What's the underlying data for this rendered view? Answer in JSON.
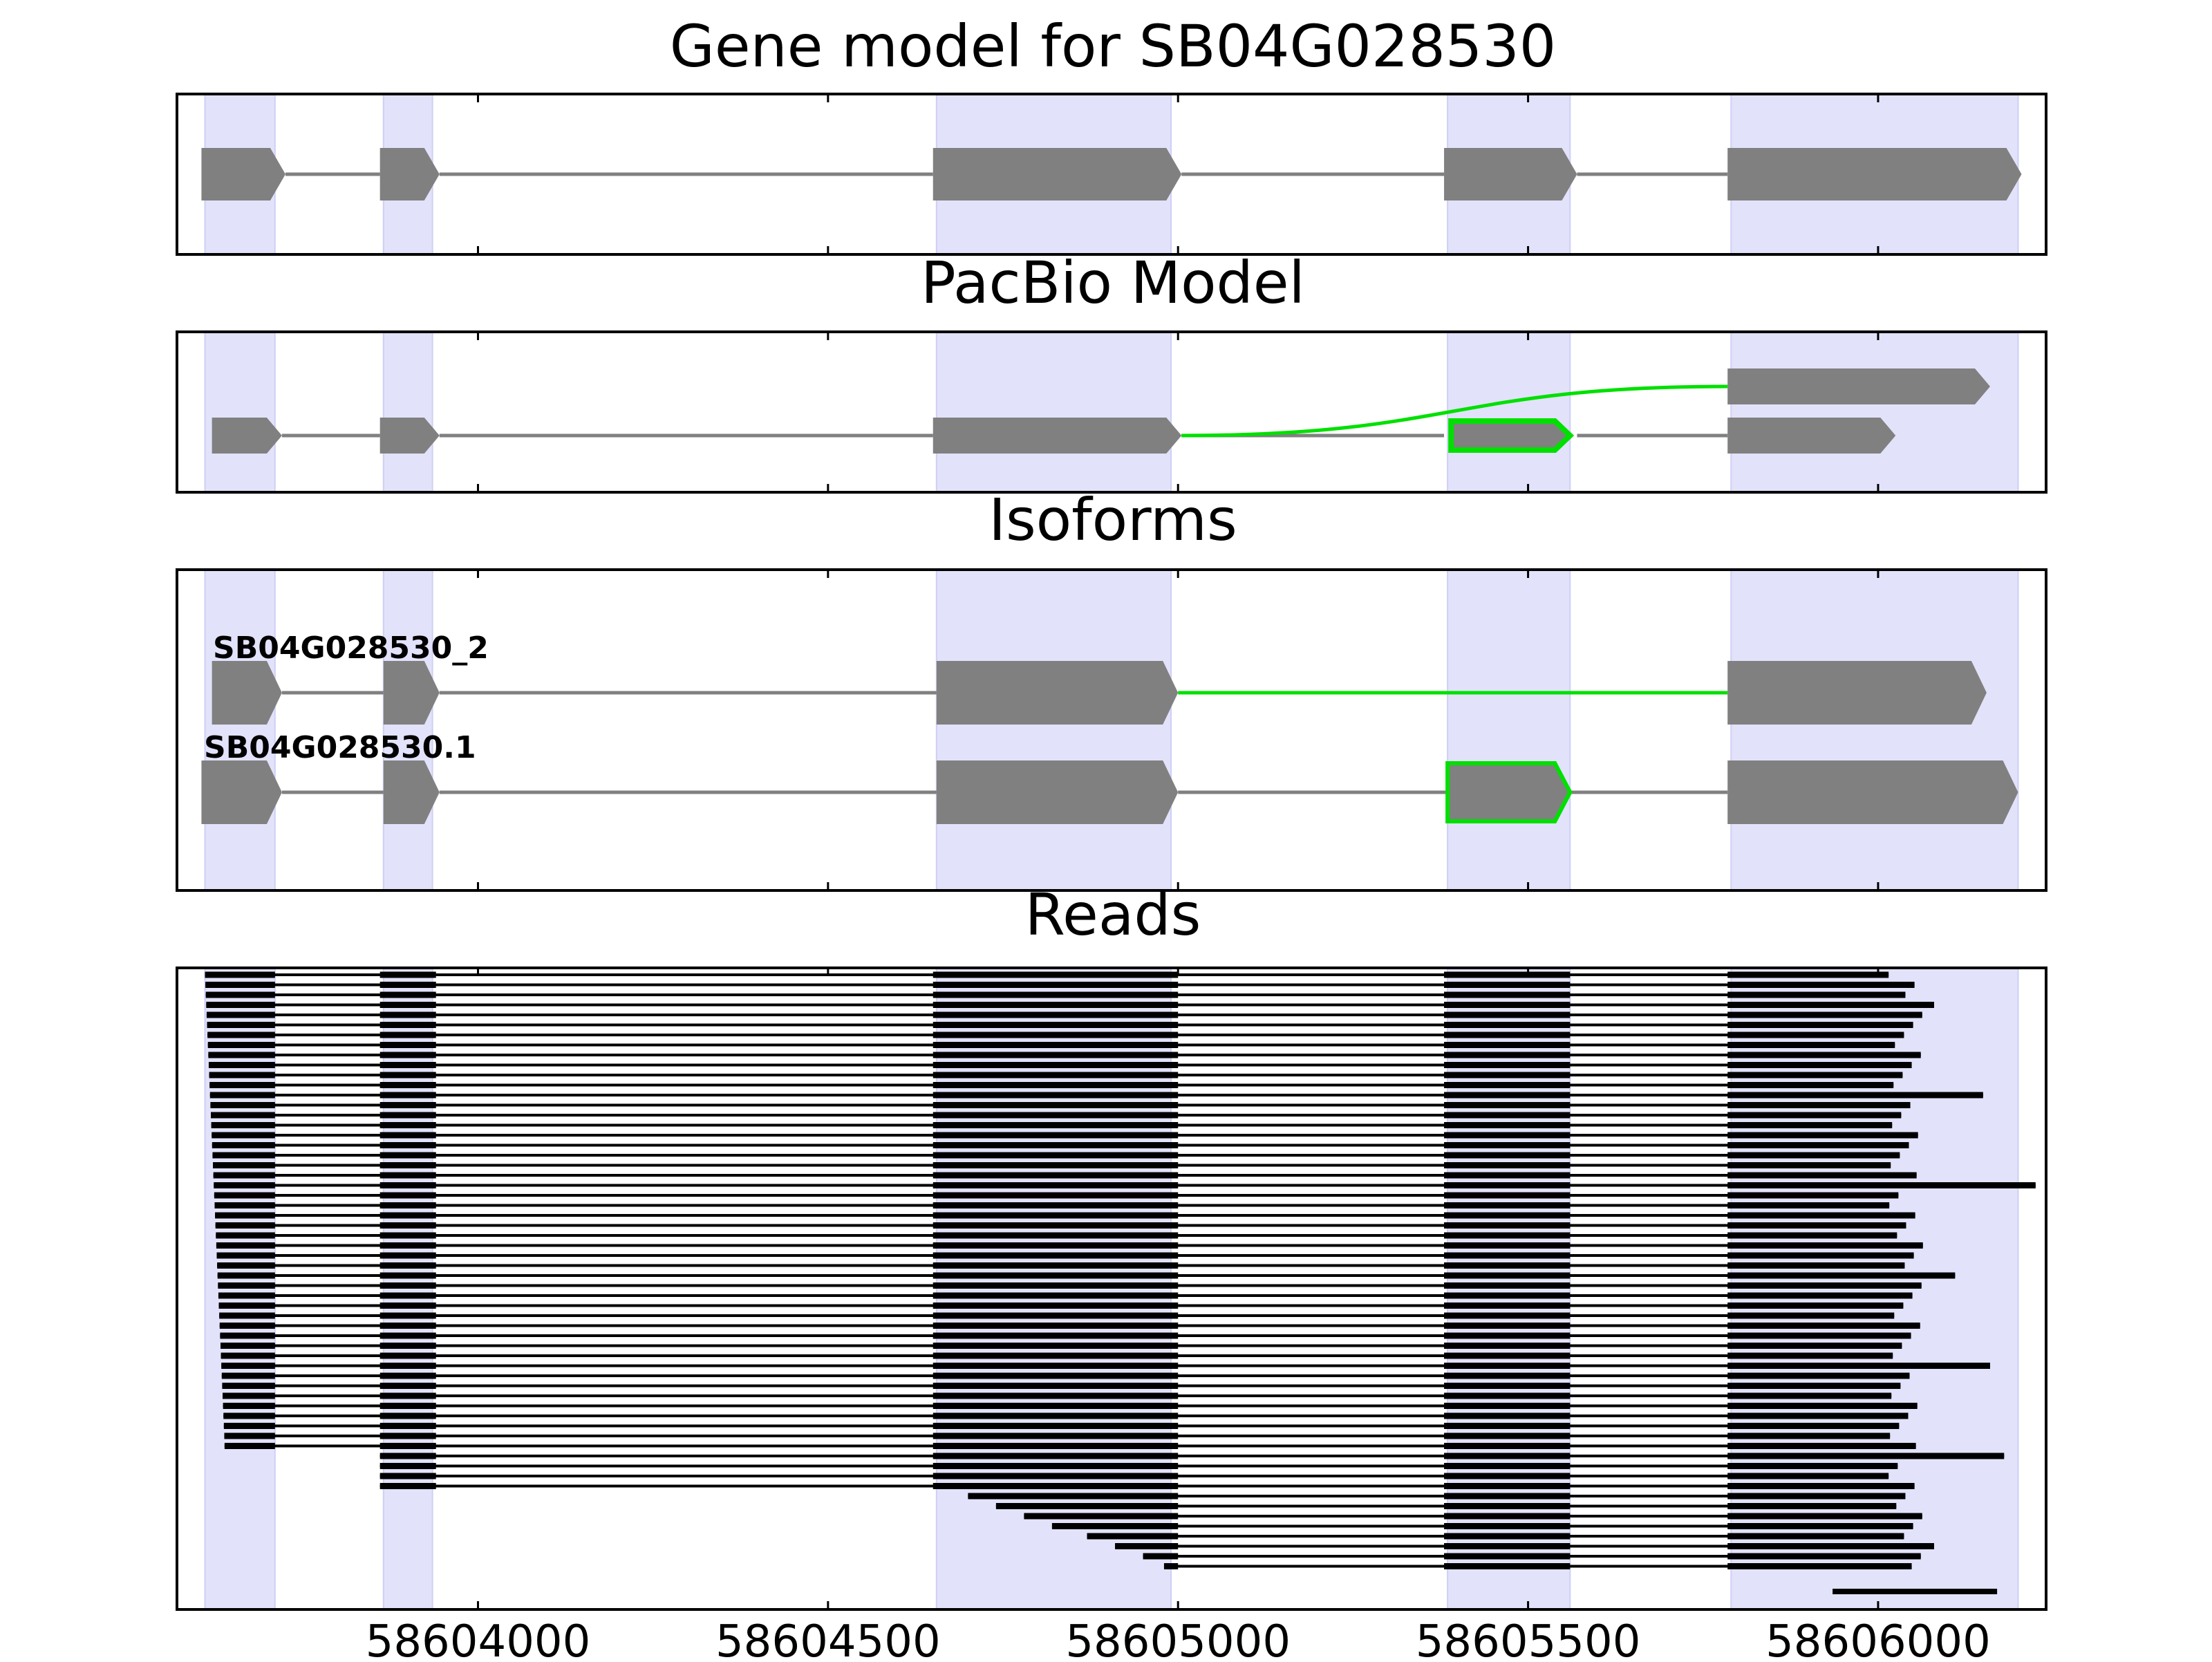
{
  "titles": {
    "gene_model": "Gene model for SB04G028530",
    "pacbio": "PacBio Model",
    "isoforms": "Isoforms",
    "reads": "Reads"
  },
  "colors": {
    "highlight": "#e2e2fb",
    "exon": "#808080",
    "intron": "#808080",
    "alt_junction": "#00e000",
    "read": "#000000",
    "axis": "#000000"
  },
  "x_axis": {
    "range": [
      58603570,
      58606240
    ],
    "ticks": [
      58604000,
      58604500,
      58605000,
      58605500,
      58606000
    ],
    "tick_labels": [
      "58604000",
      "58604500",
      "58605000",
      "58605500",
      "58606000"
    ]
  },
  "exon_regions": [
    [
      58603610,
      58603710
    ],
    [
      58603865,
      58603935
    ],
    [
      58604655,
      58604990
    ],
    [
      58605385,
      58605560
    ],
    [
      58605790,
      58606200
    ]
  ],
  "gene_model": {
    "exons": [
      [
        58603605,
        58603725
      ],
      [
        58603860,
        58603945
      ],
      [
        58604650,
        58605005
      ],
      [
        58605380,
        58605570
      ],
      [
        58605785,
        58606205
      ]
    ]
  },
  "pacbio_model": {
    "lower_exons": [
      [
        58603620,
        58603720
      ],
      [
        58603860,
        58603945
      ],
      [
        58604650,
        58605005
      ],
      [
        58605380,
        58605570
      ],
      [
        58605785,
        58606025
      ]
    ],
    "upper_exon": [
      58605785,
      58606160
    ],
    "alt_exon": [
      58605380,
      58605570
    ],
    "junction_from": 58605005,
    "junction_to": 58605785
  },
  "isoforms": [
    {
      "label": "SB04G028530_2",
      "exons": [
        [
          58603620,
          58603720
        ],
        [
          58603865,
          58603945
        ],
        [
          58604655,
          58605000
        ],
        [
          58605785,
          58606155
        ]
      ],
      "alt_junction": [
        58605000,
        58605785
      ]
    },
    {
      "label": "SB04G028530.1",
      "exons": [
        [
          58603605,
          58603720
        ],
        [
          58603865,
          58603945
        ],
        [
          58604655,
          58605000
        ],
        [
          58605385,
          58605560
        ],
        [
          58605785,
          58606200
        ]
      ],
      "alt_exon": [
        58605385,
        58605560
      ]
    }
  ],
  "reads": {
    "count": 60,
    "full_segments": [
      [
        58603610,
        58603710
      ],
      [
        58603860,
        58603940
      ],
      [
        58604650,
        58605000
      ],
      [
        58605380,
        58605560
      ],
      [
        58605785,
        58606025
      ]
    ],
    "long_read_ends": [
      58606080,
      58606150,
      58606225,
      58606110,
      58606160,
      58606180
    ],
    "short_read_starts": [
      58604700,
      58604740,
      58604780,
      58604820,
      58604870,
      58604910,
      58604950,
      58604980
    ],
    "bottom_read": [
      58605935,
      58606170
    ]
  }
}
